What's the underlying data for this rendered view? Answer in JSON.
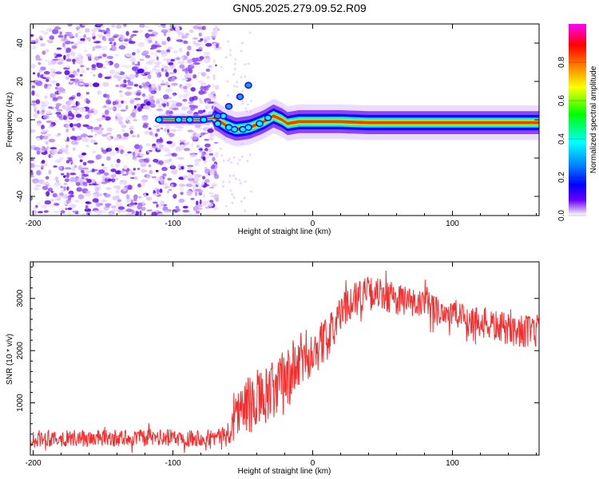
{
  "title": "GN05.2025.279.09.52.R09",
  "chart_data": [
    {
      "type": "heatmap",
      "xlabel": "Height of straight line (km)",
      "ylabel": "Frequency (Hz)",
      "xlim": [
        -202,
        162
      ],
      "ylim": [
        -50,
        50
      ],
      "xticks": [
        -200,
        -100,
        0,
        100
      ],
      "yticks": [
        -40,
        -20,
        0,
        20,
        40
      ],
      "colorbar": {
        "label": "Normalized spectral amplitude",
        "range": [
          0,
          1
        ],
        "ticks": [
          0.0,
          0.2,
          0.4,
          0.6,
          0.8
        ],
        "tick_labels": [
          "0.0",
          "0.2",
          "0.4",
          "0.6",
          "0.8"
        ],
        "colormap": [
          "#ff00ff",
          "#ff0000",
          "#ff8000",
          "#ffff00",
          "#00ff00",
          "#00ffff",
          "#0080ff",
          "#0000ff",
          "#6a00ff",
          "#ffffff"
        ]
      },
      "noise_region": {
        "x_range": [
          -202,
          -68
        ],
        "y_range": [
          -50,
          50
        ],
        "amplitude": [
          0.0,
          0.15
        ]
      },
      "signal_track": [
        {
          "x": -110,
          "y": 0
        },
        {
          "x": -95,
          "y": 0
        },
        {
          "x": -80,
          "y": 0
        },
        {
          "x": -70,
          "y": 1
        },
        {
          "x": -62,
          "y": -3
        },
        {
          "x": -55,
          "y": -5
        },
        {
          "x": -45,
          "y": -4
        },
        {
          "x": -35,
          "y": -1
        },
        {
          "x": -28,
          "y": 2
        },
        {
          "x": -22,
          "y": 0
        },
        {
          "x": -18,
          "y": -2
        },
        {
          "x": -10,
          "y": -1
        },
        {
          "x": 0,
          "y": -1
        },
        {
          "x": 20,
          "y": -1
        },
        {
          "x": 40,
          "y": -1.5
        },
        {
          "x": 60,
          "y": -1.5
        },
        {
          "x": 80,
          "y": -1.5
        },
        {
          "x": 100,
          "y": -1.5
        },
        {
          "x": 120,
          "y": -1.5
        },
        {
          "x": 140,
          "y": -1.5
        },
        {
          "x": 160,
          "y": -1.5
        }
      ],
      "side_branch": [
        {
          "x": -68,
          "y": 2
        },
        {
          "x": -60,
          "y": 7
        },
        {
          "x": -52,
          "y": 12
        },
        {
          "x": -46,
          "y": 18
        }
      ]
    },
    {
      "type": "line",
      "xlabel": "Height of straight line (km)",
      "ylabel": "SNR (10 * v/v)",
      "xlim": [
        -202,
        162
      ],
      "ylim": [
        0,
        3700
      ],
      "xticks": [
        -200,
        -100,
        0,
        100
      ],
      "yticks": [
        1000,
        2000,
        3000
      ],
      "series": [
        {
          "name": "SNR",
          "color": "#ef3030",
          "trend": [
            {
              "x": -202,
              "y": 320
            },
            {
              "x": -150,
              "y": 320
            },
            {
              "x": -100,
              "y": 330
            },
            {
              "x": -70,
              "y": 340
            },
            {
              "x": -60,
              "y": 380
            },
            {
              "x": -55,
              "y": 800
            },
            {
              "x": -50,
              "y": 900
            },
            {
              "x": -40,
              "y": 1000
            },
            {
              "x": -30,
              "y": 1150
            },
            {
              "x": -20,
              "y": 1400
            },
            {
              "x": -10,
              "y": 1750
            },
            {
              "x": 0,
              "y": 2000
            },
            {
              "x": 10,
              "y": 2200
            },
            {
              "x": 20,
              "y": 2700
            },
            {
              "x": 30,
              "y": 3050
            },
            {
              "x": 40,
              "y": 3100
            },
            {
              "x": 60,
              "y": 3000
            },
            {
              "x": 80,
              "y": 2850
            },
            {
              "x": 100,
              "y": 2700
            },
            {
              "x": 120,
              "y": 2550
            },
            {
              "x": 140,
              "y": 2400
            },
            {
              "x": 162,
              "y": 2350
            }
          ],
          "noise_amplitude": [
            {
              "x": -202,
              "y": 160
            },
            {
              "x": -60,
              "y": 170
            },
            {
              "x": -55,
              "y": 500
            },
            {
              "x": -20,
              "y": 650
            },
            {
              "x": 0,
              "y": 500
            },
            {
              "x": 20,
              "y": 330
            },
            {
              "x": 100,
              "y": 300
            },
            {
              "x": 162,
              "y": 320
            }
          ]
        }
      ]
    }
  ]
}
